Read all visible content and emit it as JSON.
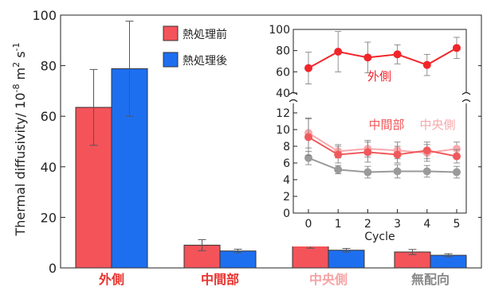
{
  "chart_data": [
    {
      "type": "bar",
      "ylabel": "Thermal diffusivity/ 10",
      "ylabel_exp1": "-8",
      "ylabel_mid": " m",
      "ylabel_exp2": "2",
      "ylabel_end": " s",
      "ylabel_exp3": "-1",
      "ylim": [
        0,
        100
      ],
      "yticks": [
        0,
        20,
        40,
        60,
        80,
        100
      ],
      "categories": [
        "外側",
        "中間部",
        "中央側",
        "無配向"
      ],
      "category_colors": [
        "#e8332e",
        "#e8332e",
        "#f5a3a3",
        "#888888"
      ],
      "legend_position": "top-center",
      "series": [
        {
          "name": "熱処理前",
          "color": "#f4535a",
          "values": [
            63.5,
            9.0,
            9.6,
            6.3
          ],
          "errors": [
            15.0,
            2.2,
            1.8,
            1.0
          ]
        },
        {
          "name": "熱処理後",
          "color": "#1e6ff0",
          "values": [
            78.8,
            6.7,
            7.0,
            5.0
          ],
          "errors": [
            18.8,
            0.7,
            0.7,
            0.6
          ]
        }
      ]
    },
    {
      "type": "line",
      "xlabel": "Cycle",
      "x": [
        0,
        1,
        2,
        3,
        4,
        5
      ],
      "ylim_upper": [
        40,
        100
      ],
      "yticks_upper": [
        40,
        60,
        80,
        100
      ],
      "ylim_lower": [
        0,
        12
      ],
      "yticks_lower": [
        0,
        2,
        4,
        6,
        8,
        10,
        12
      ],
      "broken_axis": true,
      "series": [
        {
          "name": "外側",
          "color": "#f0262b",
          "panel": "upper",
          "values": [
            63.5,
            79.0,
            73.5,
            76.5,
            66.5,
            82.5
          ],
          "errors": [
            15.0,
            19.0,
            14.5,
            9.0,
            10.0,
            10.0
          ]
        },
        {
          "name": "中間部",
          "color": "#f0595c",
          "panel": "lower",
          "values": [
            9.1,
            7.0,
            7.3,
            7.0,
            7.5,
            6.8
          ],
          "errors": [
            2.2,
            1.0,
            1.2,
            1.0,
            1.0,
            0.8
          ]
        },
        {
          "name": "中央側",
          "color": "#f9a8ab",
          "panel": "lower",
          "values": [
            9.6,
            7.4,
            7.7,
            7.5,
            7.2,
            7.7
          ],
          "errors": [
            1.8,
            0.8,
            1.0,
            1.0,
            1.0,
            0.8
          ]
        },
        {
          "name": "",
          "color": "#9a9a9a",
          "panel": "lower",
          "values": [
            6.6,
            5.2,
            4.9,
            5.0,
            5.0,
            4.9
          ],
          "errors": [
            0.8,
            0.5,
            0.7,
            0.8,
            0.7,
            0.7
          ]
        }
      ]
    }
  ]
}
